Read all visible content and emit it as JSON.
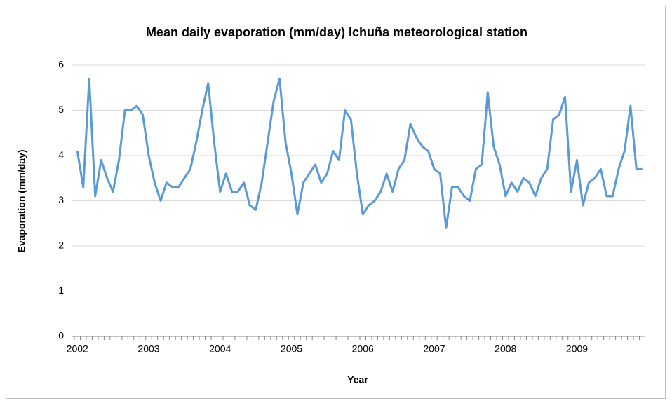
{
  "chart_data": {
    "type": "line",
    "title": "Mean daily evaporation (mm/day) Ichuña meteorological station",
    "xlabel": "Year",
    "ylabel": "Evaporation (mm/day)",
    "categories": [
      "2002",
      null,
      null,
      null,
      null,
      null,
      null,
      null,
      null,
      null,
      null,
      null,
      "2003",
      null,
      null,
      null,
      null,
      null,
      null,
      null,
      null,
      null,
      null,
      null,
      "2004",
      null,
      null,
      null,
      null,
      null,
      null,
      null,
      null,
      null,
      null,
      null,
      "2005",
      null,
      null,
      null,
      null,
      null,
      null,
      null,
      null,
      null,
      null,
      null,
      "2006",
      null,
      null,
      null,
      null,
      null,
      null,
      null,
      null,
      null,
      null,
      null,
      "2007",
      null,
      null,
      null,
      null,
      null,
      null,
      null,
      null,
      null,
      null,
      null,
      "2008",
      null,
      null,
      null,
      null,
      null,
      null,
      null,
      null,
      null,
      null,
      null,
      "2009",
      null,
      null,
      null,
      null,
      null,
      null,
      null,
      null,
      null,
      null,
      null
    ],
    "values": [
      4.1,
      3.3,
      5.7,
      3.1,
      3.9,
      3.5,
      3.2,
      3.9,
      5.0,
      5.0,
      5.1,
      4.9,
      4.0,
      3.4,
      3.0,
      3.4,
      3.3,
      3.3,
      3.5,
      3.7,
      4.3,
      5.0,
      5.6,
      4.3,
      3.2,
      3.6,
      3.2,
      3.2,
      3.4,
      2.9,
      2.8,
      3.4,
      4.3,
      5.2,
      5.7,
      4.3,
      3.6,
      2.7,
      3.4,
      3.6,
      3.8,
      3.4,
      3.6,
      4.1,
      3.9,
      5.0,
      4.8,
      3.6,
      2.7,
      2.9,
      3.0,
      3.2,
      3.6,
      3.2,
      3.7,
      3.9,
      4.7,
      4.4,
      4.2,
      4.1,
      3.7,
      3.6,
      2.4,
      3.3,
      3.3,
      3.1,
      3.0,
      3.7,
      3.8,
      5.4,
      4.2,
      3.8,
      3.1,
      3.4,
      3.2,
      3.5,
      3.4,
      3.1,
      3.5,
      3.7,
      4.8,
      4.9,
      5.3,
      3.2,
      3.9,
      2.9,
      3.4,
      3.5,
      3.7,
      3.1,
      3.1,
      3.7,
      4.1,
      5.1,
      3.7,
      3.7
    ],
    "color": "#5b9bd5",
    "ylim": [
      0,
      6
    ],
    "yticks": [
      0,
      1,
      2,
      3,
      4,
      5,
      6
    ],
    "grid": true
  }
}
